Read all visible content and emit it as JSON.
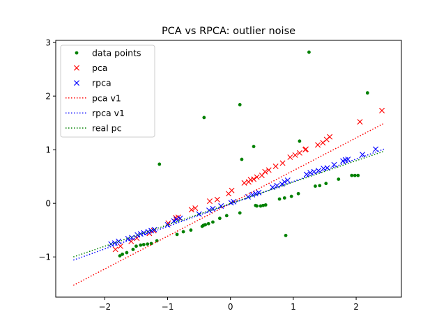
{
  "chart_data": {
    "type": "scatter",
    "title": "PCA vs RPCA: outlier noise",
    "xlabel": "",
    "ylabel": "",
    "xlim": [
      -2.78,
      2.72
    ],
    "ylim": [
      -1.75,
      3.04
    ],
    "xticks": [
      -2,
      -1,
      0,
      1,
      2
    ],
    "yticks": [
      -1,
      0,
      1,
      2,
      3
    ],
    "xtick_labels": [
      "−2",
      "−1",
      "0",
      "1",
      "2"
    ],
    "ytick_labels": [
      "−1",
      "0",
      "1",
      "2",
      "3"
    ],
    "grid": false,
    "legend": {
      "placement": "top-left",
      "entries": [
        "data points",
        "pca",
        "rpca",
        "pca v1",
        "rpca v1",
        "real pc"
      ]
    },
    "colors": {
      "green": "#008000",
      "red": "#ff0000",
      "blue": "#0000ff"
    },
    "series": [
      {
        "name": "data points",
        "kind": "dot",
        "color": "#008000",
        "x": [
          -1.76,
          -1.72,
          -1.65,
          -1.55,
          -1.5,
          -1.43,
          -1.38,
          -1.32,
          -1.26,
          -1.17,
          -1.13,
          -0.85,
          -0.75,
          -0.63,
          -0.45,
          -0.42,
          -0.4,
          -0.35,
          -0.28,
          -0.17,
          -0.06,
          0.15,
          0.15,
          0.18,
          0.37,
          0.42,
          0.48,
          0.52,
          0.56,
          0.78,
          0.86,
          0.88,
          0.97,
          1.08,
          1.1,
          1.25,
          1.35,
          1.42,
          1.52,
          1.72,
          1.93,
          1.98,
          2.03,
          2.18,
          -0.43,
          0.4
        ],
        "y": [
          -0.98,
          -0.95,
          -0.92,
          -0.86,
          -0.8,
          -0.78,
          -0.77,
          -0.76,
          -0.75,
          -0.7,
          0.73,
          -0.58,
          -0.53,
          -0.5,
          -0.43,
          1.6,
          -0.4,
          -0.38,
          -0.35,
          -0.28,
          -0.23,
          -0.18,
          1.84,
          0.82,
          1.06,
          -0.05,
          -0.05,
          -0.04,
          -0.03,
          0.08,
          0.1,
          -0.6,
          0.13,
          0.18,
          1.16,
          2.82,
          0.32,
          0.33,
          0.37,
          0.45,
          0.52,
          0.52,
          0.52,
          2.06,
          -0.41,
          -0.04
        ]
      },
      {
        "name": "pca",
        "kind": "x",
        "color": "#ff0000",
        "x": [
          -1.83,
          -1.75,
          -1.58,
          -1.49,
          -1.29,
          -1.22,
          -0.99,
          -0.87,
          -0.83,
          -0.62,
          -0.56,
          -0.33,
          -0.21,
          -0.03,
          0.02,
          0.22,
          0.29,
          0.32,
          0.37,
          0.42,
          0.5,
          0.55,
          0.61,
          0.72,
          0.83,
          0.95,
          1.03,
          1.1,
          1.19,
          1.2,
          1.39,
          1.47,
          1.53,
          1.58,
          2.06,
          2.41
        ],
        "y": [
          -0.86,
          -0.8,
          -0.71,
          -0.65,
          -0.56,
          -0.51,
          -0.37,
          -0.27,
          -0.26,
          -0.12,
          -0.09,
          0.04,
          0.07,
          0.18,
          0.24,
          0.38,
          0.4,
          0.44,
          0.45,
          0.49,
          0.52,
          0.59,
          0.62,
          0.69,
          0.75,
          0.86,
          0.9,
          0.94,
          1.0,
          1.01,
          1.09,
          1.13,
          1.19,
          1.24,
          1.52,
          1.73
        ]
      },
      {
        "name": "rpca",
        "kind": "x",
        "color": "#0000ff",
        "x": [
          -1.9,
          -1.84,
          -1.78,
          -1.63,
          -1.57,
          -1.48,
          -1.43,
          -1.38,
          -1.31,
          -1.26,
          -1.21,
          -1.0,
          -0.9,
          -0.86,
          -0.8,
          -0.5,
          -0.34,
          -0.28,
          -0.15,
          0.01,
          0.05,
          0.28,
          0.35,
          0.4,
          0.45,
          0.67,
          0.74,
          0.82,
          0.86,
          0.91,
          1.21,
          1.27,
          1.33,
          1.4,
          1.48,
          1.54,
          1.65,
          1.79,
          1.83,
          1.87,
          2.1,
          2.31
        ],
        "y": [
          -0.76,
          -0.74,
          -0.71,
          -0.66,
          -0.64,
          -0.59,
          -0.57,
          -0.55,
          -0.53,
          -0.51,
          -0.49,
          -0.4,
          -0.33,
          -0.3,
          -0.28,
          -0.2,
          -0.13,
          -0.1,
          -0.05,
          0.01,
          0.03,
          0.12,
          0.16,
          0.18,
          0.2,
          0.3,
          0.33,
          0.36,
          0.4,
          0.43,
          0.54,
          0.57,
          0.59,
          0.61,
          0.65,
          0.66,
          0.72,
          0.79,
          0.81,
          0.82,
          0.91,
          1.01
        ]
      },
      {
        "name": "pca v1",
        "kind": "dotted-line",
        "color": "#ff0000",
        "x": [
          -2.5,
          2.44
        ],
        "y": [
          -1.53,
          1.49
        ]
      },
      {
        "name": "rpca v1",
        "kind": "dotted-line",
        "color": "#0000ff",
        "x": [
          -2.5,
          2.44
        ],
        "y": [
          -1.06,
          1.01
        ]
      },
      {
        "name": "real pc",
        "kind": "dotted-line",
        "color": "#008000",
        "x": [
          -2.5,
          2.44
        ],
        "y": [
          -1.0,
          0.97
        ]
      }
    ]
  }
}
